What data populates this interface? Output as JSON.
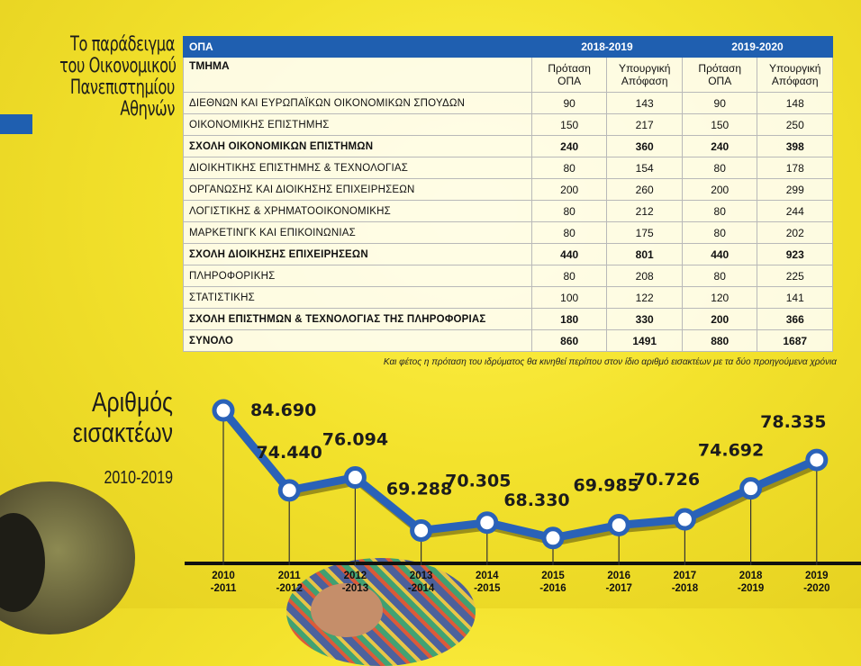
{
  "headline": {
    "lines": [
      "Το παράδειγμα",
      "του Οικονομικού",
      "Πανεπιστημίου",
      "Αθηνών"
    ]
  },
  "table": {
    "header_opa": "ΟΠΑ",
    "header_tmima": "ΤΜΗΜΑ",
    "years": [
      "2018-2019",
      "2019-2020"
    ],
    "sub_proposal": "Πρόταση ΟΠΑ",
    "sub_ministerial": "Υπουργική Απόφαση",
    "rows": [
      {
        "name": "ΔΙΕΘΝΩΝ ΚΑΙ ΕΥΡΩΠΑΪΚΩΝ ΟΙΚΟΝΟΜΙΚΩΝ ΣΠΟΥΔΩΝ",
        "bold": false,
        "values": [
          "90",
          "143",
          "90",
          "148"
        ]
      },
      {
        "name": "ΟΙΚΟΝΟΜΙΚΗΣ ΕΠΙΣΤΗΜΗΣ",
        "bold": false,
        "values": [
          "150",
          "217",
          "150",
          "250"
        ]
      },
      {
        "name": "ΣΧΟΛΗ ΟΙΚΟΝΟΜΙΚΩΝ ΕΠΙΣΤΗΜΩΝ",
        "bold": true,
        "values": [
          "240",
          "360",
          "240",
          "398"
        ]
      },
      {
        "name": "ΔΙΟΙΚΗΤΙΚΗΣ ΕΠΙΣΤΗΜΗΣ & ΤΕΧΝΟΛΟΓΙΑΣ",
        "bold": false,
        "values": [
          "80",
          "154",
          "80",
          "178"
        ]
      },
      {
        "name": "ΟΡΓΑΝΩΣΗΣ ΚΑΙ ΔΙΟΙΚΗΣΗΣ ΕΠΙΧΕΙΡΗΣΕΩΝ",
        "bold": false,
        "values": [
          "200",
          "260",
          "200",
          "299"
        ]
      },
      {
        "name": "ΛΟΓΙΣΤΙΚΗΣ & ΧΡΗΜΑΤΟΟΙΚΟΝΟΜΙΚΗΣ",
        "bold": false,
        "values": [
          "80",
          "212",
          "80",
          "244"
        ]
      },
      {
        "name": "ΜΑΡΚΕΤΙΝΓΚ ΚΑΙ ΕΠΙΚΟΙΝΩΝΙΑΣ",
        "bold": false,
        "values": [
          "80",
          "175",
          "80",
          "202"
        ]
      },
      {
        "name": "ΣΧΟΛΗ ΔΙΟΙΚΗΣΗΣ ΕΠΙΧΕΙΡΗΣΕΩΝ",
        "bold": true,
        "values": [
          "440",
          "801",
          "440",
          "923"
        ]
      },
      {
        "name": "ΠΛΗΡΟΦΟΡΙΚΗΣ",
        "bold": false,
        "values": [
          "80",
          "208",
          "80",
          "225"
        ]
      },
      {
        "name": "ΣΤΑΤΙΣΤΙΚΗΣ",
        "bold": false,
        "values": [
          "100",
          "122",
          "120",
          "141"
        ]
      },
      {
        "name": "ΣΧΟΛΗ ΕΠΙΣΤΗΜΩΝ & ΤΕΧΝΟΛΟΓΙΑΣ ΤΗΣ ΠΛΗΡΟΦΟΡΙΑΣ",
        "bold": true,
        "values": [
          "180",
          "330",
          "200",
          "366"
        ]
      },
      {
        "name": "ΣΥΝΟΛΟ",
        "bold": true,
        "values": [
          "860",
          "1491",
          "880",
          "1687"
        ]
      }
    ],
    "note": "Και φέτος η πρόταση του ιδρύματος θα κινηθεί περίπου στον ίδιο αριθμό εισακτέων με τα δύο προηγούμενα χρόνια"
  },
  "chart_title": {
    "lines": [
      "Αριθμός",
      "εισακτέων"
    ],
    "years": "2010-2019"
  },
  "colors": {
    "accent_blue": "#1f5fb0",
    "line_blue": "#2a62b8",
    "background_yellow": "#f3e22c"
  },
  "chart_data": {
    "type": "line",
    "title": "Αριθμός εισακτέων 2010-2019",
    "categories": [
      "2010 -2011",
      "2011 -2012",
      "2012 -2013",
      "2013 -2014",
      "2014 -2015",
      "2015 -2016",
      "2016 -2017",
      "2017 -2018",
      "2018 -2019",
      "2019 -2020"
    ],
    "values": [
      84690,
      74440,
      76094,
      69288,
      70305,
      68330,
      69985,
      70726,
      74692,
      78335
    ],
    "labels": [
      "84.690",
      "74.440",
      "76.094",
      "69.288",
      "70.305",
      "68.330",
      "69.985",
      "70.726",
      "74.692",
      "78.335"
    ],
    "xlabel": "",
    "ylabel": "",
    "ylim": [
      66000,
      87000
    ],
    "grid": false
  }
}
